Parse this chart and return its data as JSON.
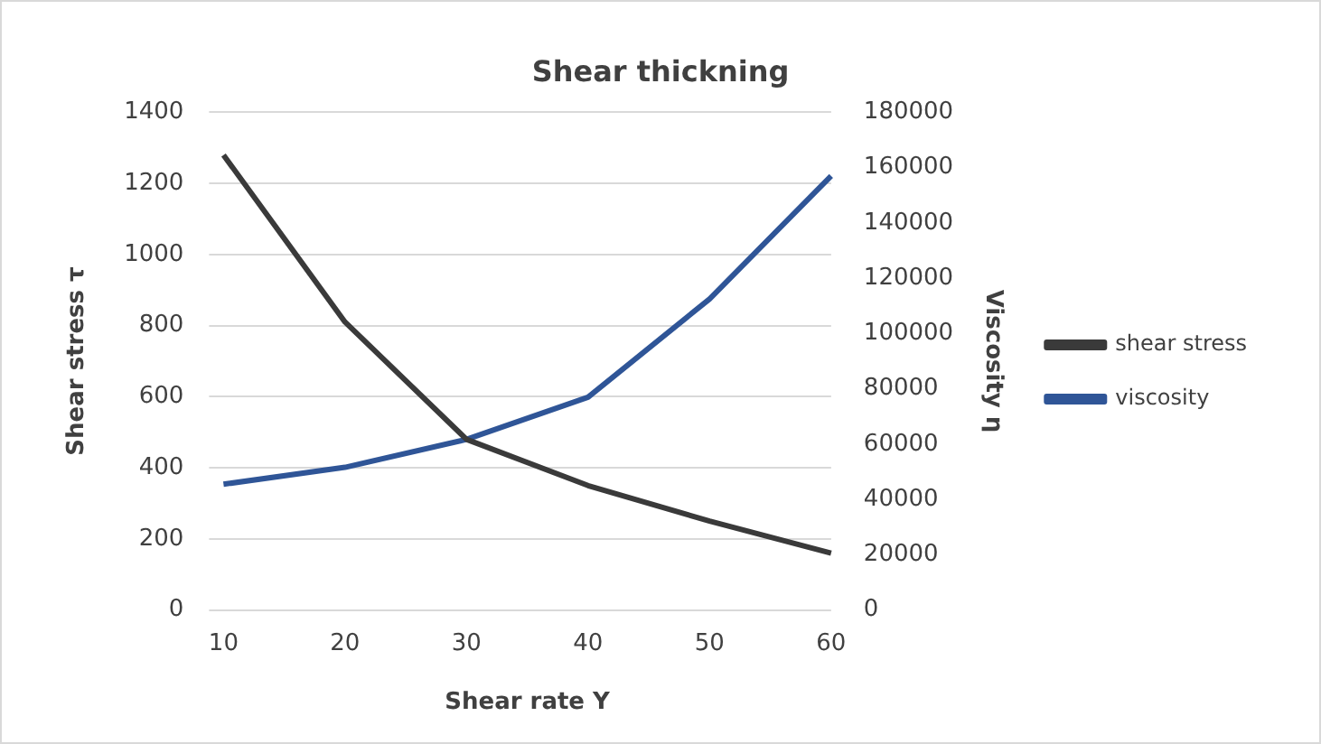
{
  "chart_data": {
    "type": "line",
    "title": "Shear thickning",
    "xlabel": "Shear rate Y",
    "ylabel": "Shear stress τ",
    "y2label": "Viscosity η",
    "categories": [
      "10",
      "20",
      "30",
      "40",
      "50",
      "60"
    ],
    "series": [
      {
        "name": "shear stress",
        "color": "#3a3a3a",
        "values": [
          1280,
          810,
          480,
          350,
          250,
          160
        ]
      },
      {
        "name": "viscosity",
        "color": "#2f5597",
        "axis": "y2",
        "values": [
          45500,
          51600,
          61700,
          77000,
          112500,
          157000
        ]
      }
    ],
    "ylim": [
      0,
      1400
    ],
    "yticks": [
      0,
      200,
      400,
      600,
      800,
      1000,
      1200,
      1400
    ],
    "y2lim": [
      0,
      180000
    ],
    "y2ticks": [
      0,
      20000,
      40000,
      60000,
      80000,
      100000,
      120000,
      140000,
      160000,
      180000
    ],
    "grid": "y",
    "legend": "right",
    "marker": "none"
  }
}
